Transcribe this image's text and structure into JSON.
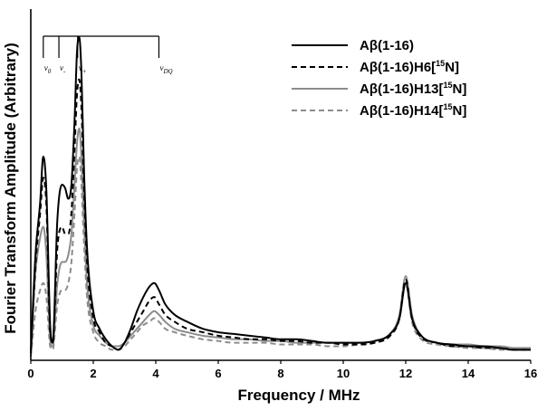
{
  "chart_data": {
    "type": "line",
    "title": "",
    "xlabel": "Frequency / MHz",
    "ylabel": "Fourier Transform Amplitude (Arbitrary)",
    "xlim": [
      0,
      16
    ],
    "ylim": [
      0,
      1.0
    ],
    "x_ticks": [
      "0",
      "2",
      "4",
      "6",
      "8",
      "10",
      "12",
      "14",
      "16"
    ],
    "grid": false,
    "legend_position": "top-right",
    "legend": [
      {
        "pre": "Aβ(1-16)",
        "sup": "",
        "post": ""
      },
      {
        "pre": "Aβ(1-16)H6[",
        "sup": "15",
        "post": "N]"
      },
      {
        "pre": "Aβ(1-16)H13[",
        "sup": "15",
        "post": "N]"
      },
      {
        "pre": "Aβ(1-16)H14[",
        "sup": "15",
        "post": "N]"
      }
    ],
    "markers": [
      {
        "x": 0.4,
        "label": "ν",
        "sub": "0"
      },
      {
        "x": 0.9,
        "label": "ν",
        "sub": "-"
      },
      {
        "x": 1.5,
        "label": "ν",
        "sub": "+"
      },
      {
        "x": 4.1,
        "label": "ν",
        "sub": "DQ"
      }
    ],
    "series": [
      {
        "name": "Aβ(1-16)",
        "color": "#000000",
        "dash": "solid",
        "x": [
          0,
          0.15,
          0.3,
          0.4,
          0.5,
          0.62,
          0.7,
          0.85,
          1.0,
          1.1,
          1.2,
          1.3,
          1.4,
          1.48,
          1.55,
          1.62,
          1.7,
          1.8,
          2.0,
          2.2,
          2.4,
          2.6,
          2.8,
          3.0,
          3.2,
          3.4,
          3.6,
          3.8,
          3.95,
          4.1,
          4.3,
          4.6,
          5.0,
          5.5,
          6.0,
          6.5,
          7.0,
          7.5,
          8.0,
          8.5,
          9.0,
          9.5,
          10.0,
          10.5,
          11.0,
          11.5,
          11.8,
          12.0,
          12.2,
          12.5,
          13.0,
          13.5,
          14.0,
          14.5,
          15.0,
          15.5,
          16.0
        ],
        "y": [
          0.02,
          0.3,
          0.45,
          0.58,
          0.48,
          0.1,
          0.05,
          0.4,
          0.5,
          0.49,
          0.46,
          0.5,
          0.68,
          0.88,
          0.92,
          0.82,
          0.55,
          0.32,
          0.14,
          0.09,
          0.06,
          0.04,
          0.03,
          0.05,
          0.09,
          0.14,
          0.18,
          0.21,
          0.22,
          0.2,
          0.16,
          0.13,
          0.11,
          0.09,
          0.08,
          0.075,
          0.07,
          0.065,
          0.06,
          0.06,
          0.055,
          0.05,
          0.05,
          0.05,
          0.055,
          0.075,
          0.12,
          0.22,
          0.12,
          0.07,
          0.05,
          0.045,
          0.04,
          0.04,
          0.035,
          0.03,
          0.03
        ]
      },
      {
        "name": "Aβ(1-16)H6[15N]",
        "color": "#000000",
        "dash": "6,4",
        "x": [
          0,
          0.15,
          0.3,
          0.4,
          0.5,
          0.62,
          0.7,
          0.85,
          1.0,
          1.1,
          1.2,
          1.3,
          1.4,
          1.48,
          1.55,
          1.62,
          1.7,
          1.8,
          2.0,
          2.2,
          2.4,
          2.6,
          2.8,
          3.0,
          3.2,
          3.4,
          3.6,
          3.8,
          3.95,
          4.1,
          4.3,
          4.6,
          5.0,
          5.5,
          6.0,
          6.5,
          7.0,
          7.5,
          8.0,
          8.5,
          9.0,
          9.5,
          10.0,
          10.5,
          11.0,
          11.5,
          11.8,
          12.0,
          12.2,
          12.5,
          13.0,
          13.5,
          14.0,
          14.5,
          15.0,
          15.5,
          16.0
        ],
        "y": [
          0.02,
          0.27,
          0.42,
          0.52,
          0.44,
          0.08,
          0.05,
          0.32,
          0.38,
          0.36,
          0.36,
          0.42,
          0.6,
          0.76,
          0.8,
          0.72,
          0.5,
          0.28,
          0.12,
          0.08,
          0.05,
          0.04,
          0.03,
          0.05,
          0.08,
          0.11,
          0.14,
          0.17,
          0.18,
          0.16,
          0.13,
          0.11,
          0.09,
          0.08,
          0.07,
          0.065,
          0.06,
          0.06,
          0.055,
          0.055,
          0.05,
          0.05,
          0.045,
          0.045,
          0.05,
          0.07,
          0.12,
          0.23,
          0.12,
          0.065,
          0.05,
          0.04,
          0.04,
          0.035,
          0.035,
          0.03,
          0.03
        ]
      },
      {
        "name": "Aβ(1-16)H13[15N]",
        "color": "#8c8c8c",
        "dash": "solid",
        "x": [
          0,
          0.15,
          0.3,
          0.4,
          0.5,
          0.62,
          0.7,
          0.85,
          1.0,
          1.1,
          1.2,
          1.3,
          1.4,
          1.48,
          1.55,
          1.62,
          1.7,
          1.8,
          2.0,
          2.2,
          2.4,
          2.6,
          2.8,
          3.0,
          3.2,
          3.4,
          3.6,
          3.8,
          3.95,
          4.1,
          4.3,
          4.6,
          5.0,
          5.5,
          6.0,
          6.5,
          7.0,
          7.5,
          8.0,
          8.5,
          9.0,
          9.5,
          10.0,
          10.5,
          11.0,
          11.5,
          11.8,
          12.0,
          12.2,
          12.5,
          13.0,
          13.5,
          14.0,
          14.5,
          15.0,
          15.5,
          16.0
        ],
        "y": [
          0.02,
          0.25,
          0.35,
          0.38,
          0.3,
          0.06,
          0.04,
          0.22,
          0.28,
          0.28,
          0.3,
          0.36,
          0.5,
          0.62,
          0.66,
          0.58,
          0.4,
          0.22,
          0.1,
          0.07,
          0.05,
          0.04,
          0.04,
          0.05,
          0.07,
          0.09,
          0.11,
          0.13,
          0.14,
          0.13,
          0.11,
          0.09,
          0.08,
          0.07,
          0.065,
          0.06,
          0.06,
          0.055,
          0.055,
          0.05,
          0.05,
          0.05,
          0.05,
          0.05,
          0.055,
          0.075,
          0.13,
          0.24,
          0.13,
          0.07,
          0.05,
          0.045,
          0.045,
          0.04,
          0.04,
          0.035,
          0.035
        ]
      },
      {
        "name": "Aβ(1-16)H14[15N]",
        "color": "#8c8c8c",
        "dash": "6,4",
        "x": [
          0,
          0.15,
          0.3,
          0.4,
          0.5,
          0.62,
          0.7,
          0.85,
          1.0,
          1.1,
          1.2,
          1.3,
          1.4,
          1.48,
          1.55,
          1.62,
          1.7,
          1.8,
          2.0,
          2.2,
          2.4,
          2.6,
          2.8,
          3.0,
          3.2,
          3.4,
          3.6,
          3.8,
          3.95,
          4.1,
          4.3,
          4.6,
          5.0,
          5.5,
          6.0,
          6.5,
          7.0,
          7.5,
          8.0,
          8.5,
          9.0,
          9.5,
          10.0,
          10.5,
          11.0,
          11.5,
          11.8,
          12.0,
          12.2,
          12.5,
          13.0,
          13.5,
          14.0,
          14.5,
          15.0,
          15.5,
          16.0
        ],
        "y": [
          0.01,
          0.14,
          0.2,
          0.22,
          0.18,
          0.04,
          0.03,
          0.16,
          0.2,
          0.2,
          0.22,
          0.28,
          0.42,
          0.55,
          0.58,
          0.5,
          0.34,
          0.18,
          0.08,
          0.05,
          0.04,
          0.03,
          0.03,
          0.04,
          0.06,
          0.08,
          0.1,
          0.11,
          0.12,
          0.11,
          0.09,
          0.08,
          0.07,
          0.06,
          0.055,
          0.05,
          0.05,
          0.05,
          0.045,
          0.045,
          0.045,
          0.04,
          0.04,
          0.045,
          0.05,
          0.07,
          0.12,
          0.22,
          0.11,
          0.06,
          0.045,
          0.04,
          0.035,
          0.035,
          0.03,
          0.03,
          0.03
        ]
      }
    ]
  }
}
